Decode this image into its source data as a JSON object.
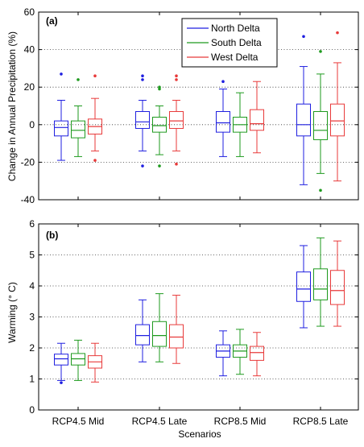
{
  "figure": {
    "xlabel": "Scenarios",
    "scenarios": [
      "RCP4.5 Mid",
      "RCP4.5 Late",
      "RCP8.5 Mid",
      "RCP8.5 Late"
    ],
    "legend": [
      {
        "name": "North Delta",
        "color": "#1f1fe0"
      },
      {
        "name": "South Delta",
        "color": "#1e9a1e"
      },
      {
        "name": "West Delta",
        "color": "#e83a3a"
      }
    ]
  },
  "chart_data": [
    {
      "type": "boxplot",
      "panel_label": "(a)",
      "ylabel": "Change in Annual Precipitation (%)",
      "ylim": [
        -40,
        60
      ],
      "yticks": [
        -40,
        -20,
        0,
        20,
        40,
        60
      ],
      "grid": "horizontal dotted",
      "legend_position": "top-right",
      "categories": [
        "RCP4.5 Mid",
        "RCP4.5 Late",
        "RCP8.5 Mid",
        "RCP8.5 Late"
      ],
      "series": [
        {
          "name": "North Delta",
          "color": "#1f1fe0",
          "boxes": [
            {
              "whisker_low": -19,
              "q1": -6,
              "median": -1.5,
              "q3": 2,
              "whisker_high": 13,
              "outliers": [
                27
              ]
            },
            {
              "whisker_low": -14,
              "q1": -2,
              "median": 1.5,
              "q3": 7,
              "whisker_high": 13,
              "outliers": [
                -22,
                24,
                26
              ]
            },
            {
              "whisker_low": -17,
              "q1": -4,
              "median": 1,
              "q3": 7,
              "whisker_high": 19,
              "outliers": [
                23
              ]
            },
            {
              "whisker_low": -32,
              "q1": -6,
              "median": 0,
              "q3": 11,
              "whisker_high": 31,
              "outliers": [
                47
              ]
            }
          ]
        },
        {
          "name": "South Delta",
          "color": "#1e9a1e",
          "boxes": [
            {
              "whisker_low": -17,
              "q1": -7,
              "median": -3,
              "q3": 2,
              "whisker_high": 10,
              "outliers": [
                24
              ]
            },
            {
              "whisker_low": -16,
              "q1": -4,
              "median": -0.5,
              "q3": 4,
              "whisker_high": 10,
              "outliers": [
                -22,
                19,
                20
              ]
            },
            {
              "whisker_low": -17,
              "q1": -4,
              "median": 0,
              "q3": 4,
              "whisker_high": 17,
              "outliers": []
            },
            {
              "whisker_low": -26,
              "q1": -8,
              "median": -3,
              "q3": 7,
              "whisker_high": 27,
              "outliers": [
                -35,
                39
              ]
            }
          ]
        },
        {
          "name": "West Delta",
          "color": "#e83a3a",
          "boxes": [
            {
              "whisker_low": -14,
              "q1": -5,
              "median": -1,
              "q3": 3,
              "whisker_high": 14,
              "outliers": [
                -19,
                26
              ]
            },
            {
              "whisker_low": -14,
              "q1": -2,
              "median": 2,
              "q3": 7,
              "whisker_high": 13,
              "outliers": [
                -21,
                24,
                26
              ]
            },
            {
              "whisker_low": -15,
              "q1": -3,
              "median": 0.5,
              "q3": 8,
              "whisker_high": 23,
              "outliers": []
            },
            {
              "whisker_low": -30,
              "q1": -6,
              "median": 2,
              "q3": 11,
              "whisker_high": 33,
              "outliers": [
                49
              ]
            }
          ]
        }
      ]
    },
    {
      "type": "boxplot",
      "panel_label": "(b)",
      "ylabel": "Warming (° C)",
      "ylim": [
        0,
        6
      ],
      "yticks": [
        0,
        1,
        2,
        3,
        4,
        5,
        6
      ],
      "grid": "horizontal dotted",
      "categories": [
        "RCP4.5 Mid",
        "RCP4.5 Late",
        "RCP8.5 Mid",
        "RCP8.5 Late"
      ],
      "series": [
        {
          "name": "North Delta",
          "color": "#1f1fe0",
          "boxes": [
            {
              "whisker_low": 0.95,
              "q1": 1.45,
              "median": 1.65,
              "q3": 1.8,
              "whisker_high": 2.15,
              "outliers": [
                0.88
              ]
            },
            {
              "whisker_low": 1.55,
              "q1": 2.1,
              "median": 2.4,
              "q3": 2.75,
              "whisker_high": 3.55,
              "outliers": []
            },
            {
              "whisker_low": 1.1,
              "q1": 1.7,
              "median": 1.9,
              "q3": 2.1,
              "whisker_high": 2.55,
              "outliers": []
            },
            {
              "whisker_low": 2.65,
              "q1": 3.5,
              "median": 3.9,
              "q3": 4.45,
              "whisker_high": 5.3,
              "outliers": []
            }
          ]
        },
        {
          "name": "South Delta",
          "color": "#1e9a1e",
          "boxes": [
            {
              "whisker_low": 0.95,
              "q1": 1.45,
              "median": 1.65,
              "q3": 1.82,
              "whisker_high": 2.25,
              "outliers": []
            },
            {
              "whisker_low": 1.55,
              "q1": 2.05,
              "median": 2.4,
              "q3": 2.85,
              "whisker_high": 3.75,
              "outliers": []
            },
            {
              "whisker_low": 1.15,
              "q1": 1.7,
              "median": 1.9,
              "q3": 2.1,
              "whisker_high": 2.6,
              "outliers": []
            },
            {
              "whisker_low": 2.7,
              "q1": 3.55,
              "median": 3.9,
              "q3": 4.55,
              "whisker_high": 5.55,
              "outliers": []
            }
          ]
        },
        {
          "name": "West Delta",
          "color": "#e83a3a",
          "boxes": [
            {
              "whisker_low": 0.9,
              "q1": 1.35,
              "median": 1.55,
              "q3": 1.75,
              "whisker_high": 2.15,
              "outliers": []
            },
            {
              "whisker_low": 1.5,
              "q1": 2.0,
              "median": 2.35,
              "q3": 2.75,
              "whisker_high": 3.7,
              "outliers": []
            },
            {
              "whisker_low": 1.1,
              "q1": 1.6,
              "median": 1.85,
              "q3": 2.05,
              "whisker_high": 2.5,
              "outliers": []
            },
            {
              "whisker_low": 2.7,
              "q1": 3.4,
              "median": 3.85,
              "q3": 4.5,
              "whisker_high": 5.45,
              "outliers": []
            }
          ]
        }
      ]
    }
  ]
}
